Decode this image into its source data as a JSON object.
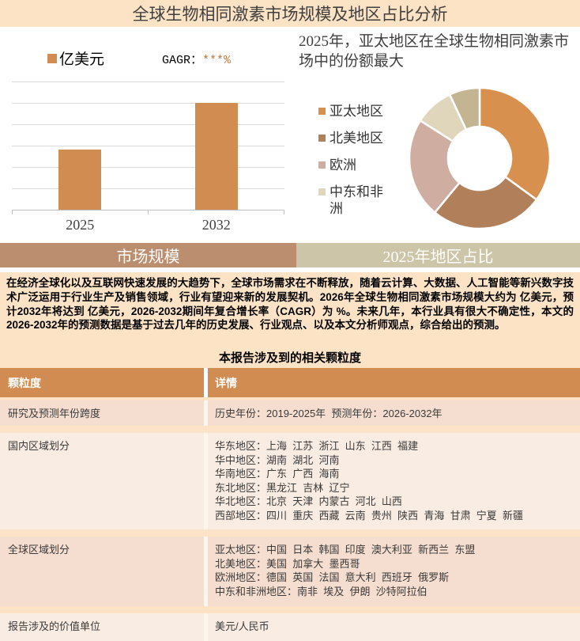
{
  "header": {
    "title": "全球生物相同激素市场规模及地区占比分析"
  },
  "tabs": [
    {
      "label": "市场规模"
    },
    {
      "label": "2025年地区占比"
    }
  ],
  "intro": {
    "paragraph": "在经济全球化以及互联网快速发展的大趋势下，全球市场需求在不断释放，随着云计算、大数据、人工智能等新兴数字技术广泛运用于行业生产及销售领域，行业有望迎来新的发展契机。2026年全球生物相同激素市场规模大约为 亿美元，预计2032年将达到 亿美元，2026-2032期间年复合增长率（CAGR）为 %。未来几年，本行业具有很大不确定性，本文的2026-2032年的预测数据是基于过去几年的历史发展、行业观点、以及本文分析师观点，综合给出的预测。",
    "section_title": "本报告涉及到的相关颗粒度"
  },
  "table": {
    "headers": [
      "颗粒度",
      "详情"
    ],
    "rows": [
      {
        "name": "研究及预测年份跨度",
        "details": [
          "历史年份：2019-2025年  预测年份：2026-2032年"
        ]
      },
      {
        "name": "国内区域划分",
        "details": [
          "华东地区：上海  江苏  浙江  山东  江西  福建",
          "华中地区：湖南  湖北  河南",
          "华南地区：广东  广西  海南",
          "东北地区：黑龙江  吉林  辽宁",
          "华北地区：北京  天津  内蒙古  河北  山西",
          "西部地区：四川  重庆  西藏  云南  贵州  陕西  青海  甘肃  宁夏  新疆"
        ]
      },
      {
        "name": "全球区域划分",
        "details": [
          "亚太地区：中国  日本  韩国  印度  澳大利亚  新西兰  东盟",
          "北美地区：美国  加拿大  墨西哥",
          "欧洲地区：德国  英国  法国  意大利  西班牙  俄罗斯",
          "中东和非洲地区：南非  埃及  伊朗  沙特阿拉伯"
        ]
      },
      {
        "name": "报告涉及的价值单位",
        "details": [
          "美元/人民币"
        ]
      }
    ]
  },
  "chart_data": [
    {
      "type": "bar",
      "title": "",
      "legend_label": "亿美元",
      "cagr_label": "GAGR：",
      "cagr_value": "***%",
      "categories": [
        "2025",
        "2032"
      ],
      "values_axis_units": [
        2.8,
        5.0
      ],
      "axis_max": 6,
      "gridlines": 7,
      "value_labels_hidden": true,
      "bar_color": "#d18c52",
      "gridline_color": "#d9d9d9"
    },
    {
      "type": "donut",
      "title": "2025年，亚太地区在全球生物相同激素市场中的份额最大",
      "start_angle_deg": 0,
      "inner_radius_ratio": 0.45,
      "slices": [
        {
          "label": "亚太地区",
          "value_pct": 35,
          "color": "#d7904e"
        },
        {
          "label": "北美地区",
          "value_pct": 26,
          "color": "#b1805a"
        },
        {
          "label": "欧洲",
          "value_pct": 23,
          "color": "#cfaea1"
        },
        {
          "label": "中东和非洲",
          "value_pct": 9,
          "color": "#dfd6bc"
        },
        {
          "label": "",
          "value_pct": 7,
          "color": "#c3b492"
        }
      ],
      "legend_position": "left",
      "legend_visible_slices": 4
    }
  ],
  "colors": {
    "peach_bg": "#fce3c5",
    "bar_orange": "#d18c52",
    "cagr_orange": "#c0793f",
    "tab_left_bg": "#ba8e6e",
    "tab_right_bg": "#cdc5a7",
    "table_header_bg": "#d18c51",
    "row_odd_bg": "#f5ded0",
    "row_even_bg": "#f9ece3",
    "title_text": "#3f3f3f"
  }
}
